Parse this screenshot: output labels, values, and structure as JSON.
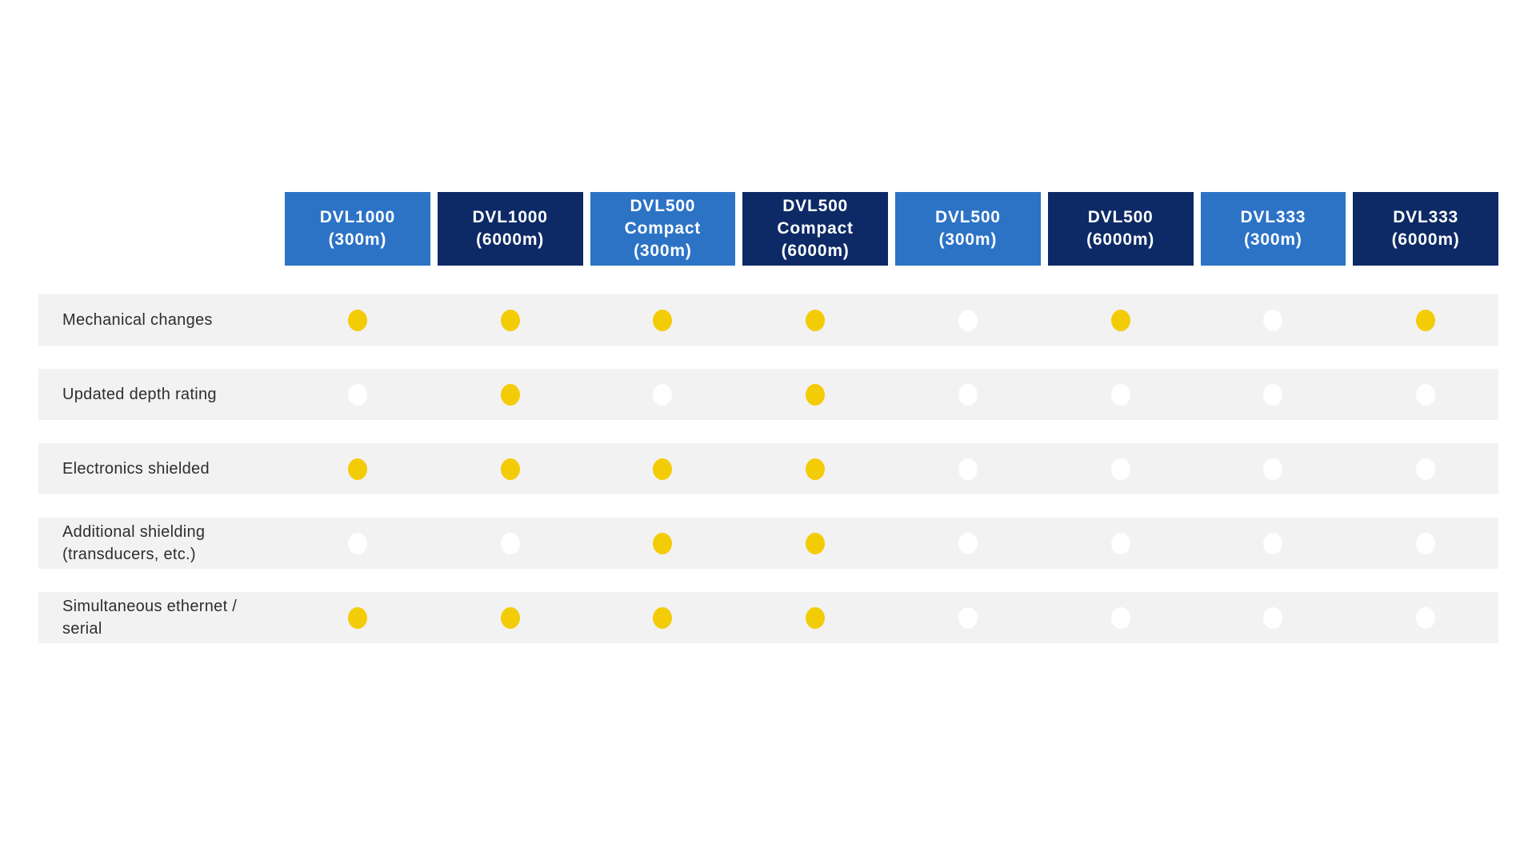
{
  "colors": {
    "header_light_bg": "#2C73C6",
    "header_dark_bg": "#0D2A66",
    "header_text": "#FFFFFF",
    "row_bg": "#F2F2F2",
    "dot_included": "#F3CC08",
    "dot_not_included": "#FFFFFF",
    "label_text": "#2E2E2E",
    "page_bg": "#FFFFFF"
  },
  "chart_data": {
    "type": "table",
    "title": "",
    "columns": [
      {
        "id": "dvl1000-300m",
        "lines": [
          "DVL1000",
          "(300m)"
        ],
        "variant": "light"
      },
      {
        "id": "dvl1000-6000m",
        "lines": [
          "DVL1000",
          "(6000m)"
        ],
        "variant": "dark"
      },
      {
        "id": "dvl500-compact-300m",
        "lines": [
          "DVL500",
          "Compact",
          "(300m)"
        ],
        "variant": "light"
      },
      {
        "id": "dvl500-compact-6000m",
        "lines": [
          "DVL500",
          "Compact",
          "(6000m)"
        ],
        "variant": "dark"
      },
      {
        "id": "dvl500-300m",
        "lines": [
          "DVL500",
          "(300m)"
        ],
        "variant": "light"
      },
      {
        "id": "dvl500-6000m",
        "lines": [
          "DVL500",
          "(6000m)"
        ],
        "variant": "dark"
      },
      {
        "id": "dvl333-300m",
        "lines": [
          "DVL333",
          "(300m)"
        ],
        "variant": "light"
      },
      {
        "id": "dvl333-6000m",
        "lines": [
          "DVL333",
          "(6000m)"
        ],
        "variant": "dark"
      }
    ],
    "rows": [
      {
        "id": "mechanical-changes",
        "label_lines": [
          "Mechanical changes"
        ],
        "values": [
          1,
          1,
          1,
          1,
          0,
          1,
          0,
          1
        ]
      },
      {
        "id": "updated-depth-rating",
        "label_lines": [
          "Updated depth rating"
        ],
        "values": [
          0,
          1,
          0,
          1,
          0,
          0,
          0,
          0
        ]
      },
      {
        "id": "electronics-shielded",
        "label_lines": [
          "Electronics shielded"
        ],
        "values": [
          1,
          1,
          1,
          1,
          0,
          0,
          0,
          0
        ]
      },
      {
        "id": "additional-shielding",
        "label_lines": [
          "Additional shielding",
          "(transducers, etc.)"
        ],
        "values": [
          0,
          0,
          1,
          1,
          0,
          0,
          0,
          0
        ]
      },
      {
        "id": "simultaneous-ethernet-serial",
        "label_lines": [
          "Simultaneous ethernet /",
          "serial"
        ],
        "values": [
          1,
          1,
          1,
          1,
          0,
          0,
          0,
          0
        ]
      }
    ]
  }
}
